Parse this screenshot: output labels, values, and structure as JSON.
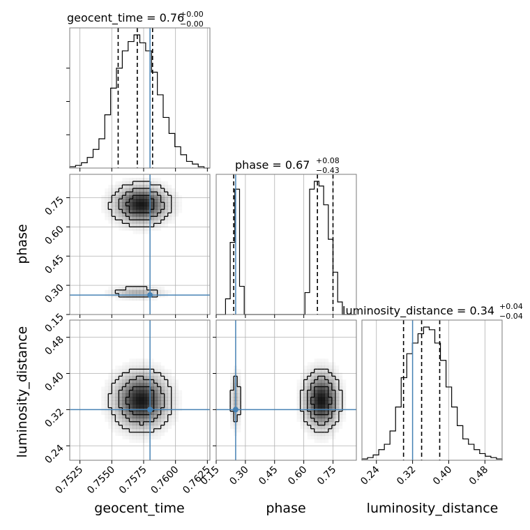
{
  "chart_data": {
    "type": "corner",
    "parameters": [
      "geocent_time",
      "phase",
      "luminosity_distance"
    ],
    "truth": {
      "geocent_time": 0.758,
      "phase": 0.25,
      "luminosity_distance": 0.32
    },
    "colors": {
      "truth": "#4682b4",
      "hist": "#000000",
      "grid": "#b0b0b0",
      "density": "#000000"
    },
    "grid": true,
    "titles": [
      {
        "param": "geocent_time",
        "text": "geocent_time = 0.76",
        "sup": "+0.00",
        "sub": "−0.00"
      },
      {
        "param": "phase",
        "text": "phase = 0.67",
        "sup": "+0.08",
        "sub": "−0.43"
      },
      {
        "param": "luminosity_distance",
        "text": "luminosity_distance = 0.34",
        "sup": "+0.04",
        "sub": "−0.04"
      }
    ],
    "axis_labels": {
      "x": [
        "geocent_time",
        "phase",
        "luminosity_distance"
      ],
      "y": [
        "phase",
        "luminosity_distance"
      ]
    },
    "ticks": {
      "geocent_time": [
        "0.7525",
        "0.7550",
        "0.7575",
        "0.7600",
        "0.7625"
      ],
      "phase_x": [
        "0.15",
        "0.30",
        "0.45",
        "0.60",
        "0.75"
      ],
      "phase_y": [
        "0.15",
        "0.30",
        "0.45",
        "0.60",
        "0.75"
      ],
      "luminosity_distance": [
        "0.24",
        "0.32",
        "0.40",
        "0.48"
      ]
    },
    "ranges": {
      "geocent_time": [
        0.7517,
        0.7627
      ],
      "phase": [
        0.15,
        0.87
      ],
      "luminosity_distance": [
        0.208,
        0.518
      ]
    },
    "histograms": {
      "geocent_time": {
        "range": [
          0.7517,
          0.7627
        ],
        "counts": [
          1,
          2,
          4,
          8,
          14,
          22,
          40,
          60,
          75,
          88,
          95,
          100,
          94,
          88,
          72,
          55,
          38,
          26,
          16,
          10,
          5,
          3,
          1,
          0
        ],
        "quantiles": [
          0.7555,
          0.757,
          0.7582
        ]
      },
      "phase": {
        "range": [
          0.15,
          0.87
        ],
        "counts": [
          0,
          0,
          10,
          46,
          80,
          18,
          0,
          0,
          0,
          0,
          0,
          0,
          0,
          0,
          0,
          0,
          0,
          0,
          0,
          14,
          80,
          85,
          82,
          70,
          48,
          27,
          8,
          0,
          0,
          0
        ],
        "quantiles": [
          0.24,
          0.67,
          0.75
        ]
      },
      "luminosity_distance": {
        "range": [
          0.208,
          0.518
        ],
        "counts": [
          1,
          2,
          4,
          8,
          12,
          22,
          40,
          62,
          80,
          88,
          95,
          100,
          98,
          88,
          75,
          55,
          40,
          26,
          16,
          12,
          8,
          5,
          3,
          2,
          1
        ],
        "quantiles": [
          0.3,
          0.34,
          0.38
        ]
      }
    },
    "density_blobs": {
      "geocent_time_vs_phase": [
        {
          "cx": 0.7573,
          "cy": 0.715,
          "sx": 0.0012,
          "sy": 0.055,
          "w": 0.75
        },
        {
          "cx": 0.757,
          "cy": 0.262,
          "sx": 0.0012,
          "sy": 0.018,
          "w": 0.25
        }
      ],
      "geocent_time_vs_luminosity_distance": [
        {
          "cx": 0.7573,
          "cy": 0.34,
          "sx": 0.0012,
          "sy": 0.035,
          "w": 1
        }
      ],
      "phase_vs_luminosity_distance": [
        {
          "cx": 0.25,
          "cy": 0.34,
          "sx": 0.015,
          "sy": 0.035,
          "w": 0.25
        },
        {
          "cx": 0.69,
          "cy": 0.34,
          "sx": 0.05,
          "sy": 0.035,
          "w": 0.75
        }
      ]
    }
  }
}
